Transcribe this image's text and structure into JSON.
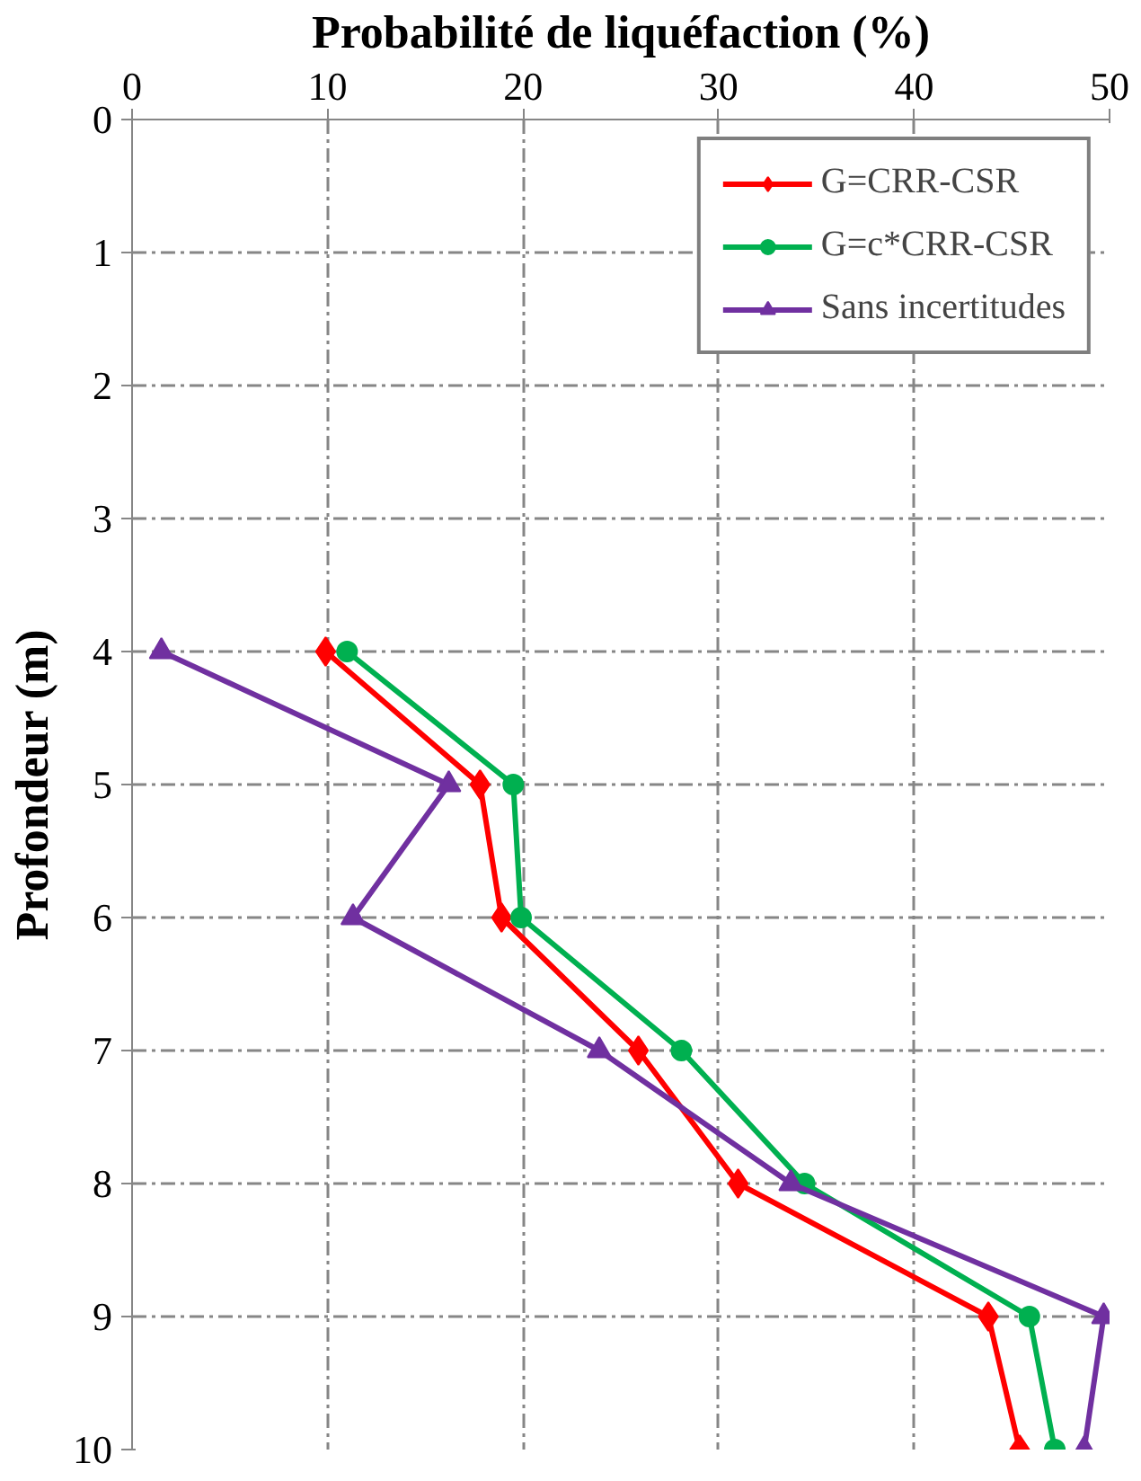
{
  "chart_data": {
    "type": "line",
    "xlabel": "Probabilité de liquéfaction (%)",
    "ylabel": "Profondeur (m)",
    "xlim": [
      0,
      50
    ],
    "xticks": [
      0,
      10,
      20,
      30,
      40,
      50
    ],
    "ylim": [
      10,
      0
    ],
    "yticks": [
      0,
      1,
      2,
      3,
      4,
      5,
      6,
      7,
      8,
      9,
      10
    ],
    "grid": true,
    "legend": "top right",
    "line_style": "solid",
    "orientation": "horizontal",
    "series": [
      {
        "name": "G=CRR-CSR",
        "color": "#ff0000",
        "marker": "diamond",
        "x": [
          4,
          5,
          6,
          7,
          8,
          9,
          10
        ],
        "values": [
          9.9,
          17.8,
          18.9,
          25.9,
          31.0,
          43.8,
          45.4
        ]
      },
      {
        "name": "G=c*CRR-CSR",
        "color": "#00b050",
        "marker": "circle",
        "x": [
          4,
          5,
          6,
          7,
          8,
          9,
          10
        ],
        "values": [
          11.0,
          19.5,
          19.9,
          28.1,
          34.4,
          45.9,
          47.2
        ]
      },
      {
        "name": "Sans incertitudes",
        "color": "#7030a0",
        "marker": "triangle",
        "x": [
          4,
          5,
          6,
          7,
          8,
          9,
          10
        ],
        "values": [
          1.5,
          16.2,
          11.3,
          23.9,
          33.7,
          49.7,
          48.7
        ]
      }
    ]
  }
}
